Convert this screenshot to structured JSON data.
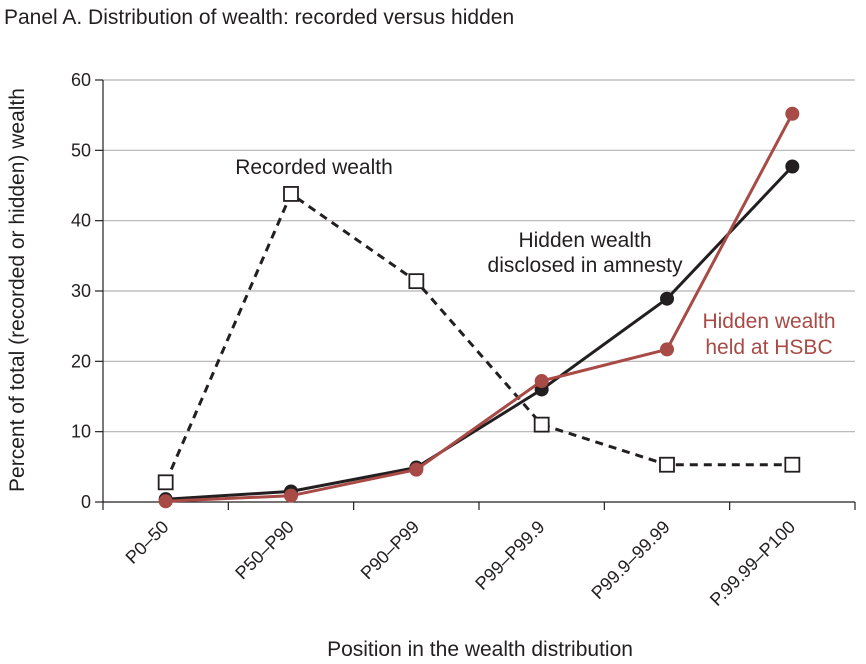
{
  "chart_data": {
    "type": "line",
    "title": "Panel A. Distribution of wealth: recorded versus hidden",
    "xlabel": "Position in the wealth distribution",
    "ylabel": "Percent of total (recorded or hidden) wealth",
    "ylim": [
      0,
      60
    ],
    "yticks": [
      0,
      10,
      20,
      30,
      40,
      50,
      60
    ],
    "grid": true,
    "categories": [
      "P0–50",
      "P50–P90",
      "P90–P99",
      "P99–P99.9",
      "P99.9–99.99",
      "P.99.99–P100"
    ],
    "series": [
      {
        "name": "Recorded wealth",
        "values": [
          2.8,
          43.8,
          31.4,
          11.0,
          5.3,
          5.3
        ],
        "style": "dashed",
        "marker": "open-square",
        "color": "#231f20"
      },
      {
        "name": "Hidden wealth disclosed in amnesty",
        "values": [
          0.4,
          1.5,
          4.9,
          16.0,
          28.9,
          47.7
        ],
        "style": "solid",
        "marker": "filled-circle",
        "color": "#231f20"
      },
      {
        "name": "Hidden wealth held at HSBC",
        "values": [
          0.1,
          0.9,
          4.6,
          17.2,
          21.7,
          55.2
        ],
        "style": "solid",
        "marker": "filled-circle",
        "color": "#a84a45"
      }
    ],
    "annotations": [
      {
        "text": "Recorded wealth",
        "color": "#231f20"
      },
      {
        "text": "Hidden wealth",
        "color": "#231f20"
      },
      {
        "text": "disclosed in amnesty",
        "color": "#231f20"
      },
      {
        "text": "Hidden wealth",
        "color": "#a84a45"
      },
      {
        "text": "held at HSBC",
        "color": "#a84a45"
      }
    ]
  }
}
